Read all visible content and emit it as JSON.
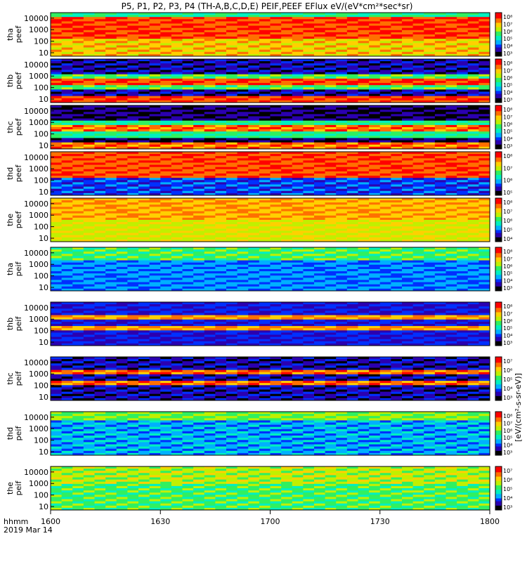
{
  "title": "P5, P1, P2, P3, P4 (TH-A,B,C,D,E) PEIF,PEEF EFlux eV/(eV*cm²*sec*sr)",
  "time_axis": {
    "ticks": [
      "1600",
      "1630",
      "1700",
      "1730",
      "1800"
    ],
    "label_top": "hhmm",
    "label_bottom": "2019 Mar 14"
  },
  "colorbar_label": "[eV/(cm²-s-sr-eV)]",
  "colors": {
    "rainbow": [
      "#000000",
      "#2b00b0",
      "#0030ff",
      "#00b0ff",
      "#00f0c0",
      "#30f060",
      "#c0f000",
      "#ffd000",
      "#ff7000",
      "#ff0000",
      "#ff3030"
    ]
  },
  "chart_data": [
    {
      "type": "heatmap",
      "ylabel_top": "tha",
      "ylabel_bottom": "peef",
      "y_ticks": [
        "10",
        "100",
        "1000",
        "10000"
      ],
      "cbar_ticks": [
        "10⁸",
        "10⁷",
        "10⁶",
        "10⁵",
        "10⁴",
        "10³"
      ]
    },
    {
      "type": "heatmap",
      "ylabel_top": "thb",
      "ylabel_bottom": "peef",
      "y_ticks": [
        "10",
        "100",
        "1000",
        "10000"
      ],
      "cbar_ticks": [
        "10⁸",
        "10⁷",
        "10⁶",
        "10⁵",
        "10⁴",
        "10³"
      ]
    },
    {
      "type": "heatmap",
      "ylabel_top": "thc",
      "ylabel_bottom": "peef",
      "y_ticks": [
        "10",
        "100",
        "1000",
        "10000"
      ],
      "cbar_ticks": [
        "10⁸",
        "10⁷",
        "10⁶",
        "10⁵",
        "10⁴",
        "10³"
      ]
    },
    {
      "type": "heatmap",
      "ylabel_top": "thd",
      "ylabel_bottom": "peef",
      "y_ticks": [
        "10",
        "100",
        "1000",
        "10000"
      ],
      "cbar_ticks": [
        "10⁸",
        "10⁷",
        "10⁶",
        "10⁵"
      ]
    },
    {
      "type": "heatmap",
      "ylabel_top": "the",
      "ylabel_bottom": "peef",
      "y_ticks": [
        "10",
        "100",
        "1000",
        "10000"
      ],
      "cbar_ticks": [
        "10⁸",
        "10⁷",
        "10⁶",
        "10⁵",
        "10⁴"
      ]
    },
    {
      "type": "heatmap",
      "ylabel_top": "tha",
      "ylabel_bottom": "peif",
      "y_ticks": [
        "10",
        "100",
        "1000",
        "10000"
      ],
      "cbar_ticks": [
        "10⁸",
        "10⁷",
        "10⁶",
        "10⁵",
        "10⁴",
        "10³"
      ]
    },
    {
      "type": "heatmap",
      "ylabel_top": "thb",
      "ylabel_bottom": "peif",
      "y_ticks": [
        "10",
        "100",
        "1000",
        "10000"
      ],
      "cbar_ticks": [
        "10⁸",
        "10⁷",
        "10⁶",
        "10⁵",
        "10⁴",
        "10³"
      ]
    },
    {
      "type": "heatmap",
      "ylabel_top": "thc",
      "ylabel_bottom": "peif",
      "y_ticks": [
        "10",
        "100",
        "1000",
        "10000"
      ],
      "cbar_ticks": [
        "10⁷",
        "10⁶",
        "10⁵",
        "10⁴",
        "10³"
      ]
    },
    {
      "type": "heatmap",
      "ylabel_top": "thd",
      "ylabel_bottom": "peif",
      "y_ticks": [
        "10",
        "100",
        "1000",
        "10000"
      ],
      "cbar_ticks": [
        "10⁸",
        "10⁷",
        "10⁶",
        "10⁵",
        "10⁴",
        "10³"
      ]
    },
    {
      "type": "heatmap",
      "ylabel_top": "the",
      "ylabel_bottom": "peif",
      "y_ticks": [
        "10",
        "100",
        "1000",
        "10000"
      ],
      "cbar_ticks": [
        "10⁷",
        "10⁶",
        "10⁵",
        "10⁴",
        "10³"
      ]
    }
  ]
}
